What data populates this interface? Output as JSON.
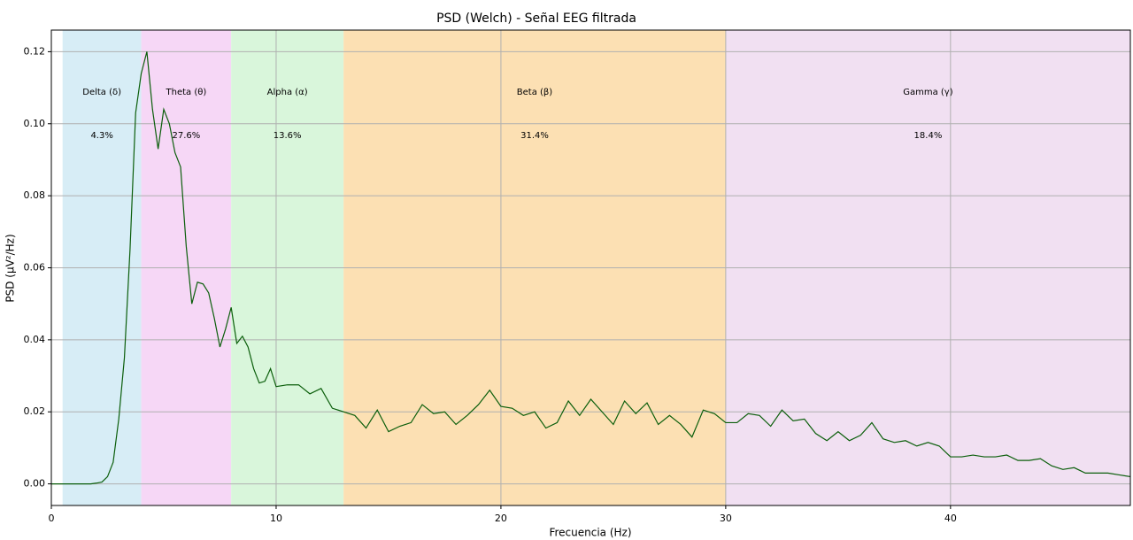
{
  "chart_data": {
    "type": "line",
    "title": "PSD (Welch) - Señal EEG filtrada",
    "xlabel": "Frecuencia (Hz)",
    "ylabel": "PSD (µV²/Hz)",
    "xlim": [
      0,
      48
    ],
    "ylim": [
      -0.006,
      0.126
    ],
    "xticks": [
      0,
      10,
      20,
      30,
      40
    ],
    "yticks": [
      {
        "value": 0,
        "label": "0.00"
      },
      {
        "value": 0.02,
        "label": "0.02"
      },
      {
        "value": 0.04,
        "label": "0.04"
      },
      {
        "value": 0.06,
        "label": "0.06"
      },
      {
        "value": 0.08,
        "label": "0.08"
      },
      {
        "value": 0.1,
        "label": "0.10"
      },
      {
        "value": 0.12,
        "label": "0.12"
      }
    ],
    "grid": true,
    "bands": {
      "names": [
        "Delta (δ)",
        "Theta (θ)",
        "Alpha (α)",
        "Beta (β)",
        "Gamma (γ)"
      ],
      "ranges": [
        [
          0.5,
          4
        ],
        [
          4,
          8
        ],
        [
          8,
          13
        ],
        [
          13,
          30
        ],
        [
          30,
          48
        ]
      ],
      "shares": [
        4.3,
        27.6,
        13.6,
        31.4,
        18.4
      ],
      "share_labels": [
        "4.3%",
        "27.6%",
        "13.6%",
        "31.4%",
        "18.4%"
      ],
      "colors": [
        "#d7edf6",
        "#f6d7f6",
        "#d9f6db",
        "#fce0b3",
        "#f1e0f2"
      ]
    },
    "series": [
      {
        "name": "PSD",
        "color": "#0b5e0b",
        "x": [
          0,
          0.25,
          0.5,
          0.75,
          1,
          1.25,
          1.5,
          1.75,
          2,
          2.25,
          2.5,
          2.75,
          3,
          3.25,
          3.5,
          3.75,
          4,
          4.25,
          4.5,
          4.75,
          5,
          5.25,
          5.5,
          5.75,
          6,
          6.25,
          6.5,
          6.75,
          7,
          7.25,
          7.5,
          7.75,
          8,
          8.25,
          8.5,
          8.75,
          9,
          9.25,
          9.5,
          9.75,
          10,
          10.5,
          11,
          11.5,
          12,
          12.5,
          13,
          13.5,
          14,
          14.5,
          15,
          15.5,
          16,
          16.5,
          17,
          17.5,
          18,
          18.5,
          19,
          19.5,
          20,
          20.5,
          21,
          21.5,
          22,
          22.5,
          23,
          23.5,
          24,
          24.5,
          25,
          25.5,
          26,
          26.5,
          27,
          27.5,
          28,
          28.5,
          29,
          29.5,
          30,
          30.5,
          31,
          31.5,
          32,
          32.5,
          33,
          33.5,
          34,
          34.5,
          35,
          35.5,
          36,
          36.5,
          37,
          37.5,
          38,
          38.5,
          39,
          39.5,
          40,
          40.5,
          41,
          41.5,
          42,
          42.5,
          43,
          43.5,
          44,
          44.5,
          45,
          45.5,
          46,
          46.5,
          47,
          47.5,
          48
        ],
        "values": [
          0,
          0,
          0,
          0,
          0,
          0,
          0,
          0,
          0.0002,
          0.0005,
          0.002,
          0.006,
          0.018,
          0.035,
          0.065,
          0.103,
          0.114,
          0.12,
          0.104,
          0.093,
          0.104,
          0.1,
          0.092,
          0.088,
          0.066,
          0.05,
          0.056,
          0.0555,
          0.053,
          0.046,
          0.038,
          0.043,
          0.049,
          0.039,
          0.041,
          0.038,
          0.032,
          0.028,
          0.0285,
          0.032,
          0.027,
          0.0275,
          0.0275,
          0.025,
          0.0265,
          0.021,
          0.02,
          0.019,
          0.0155,
          0.0205,
          0.0145,
          0.016,
          0.017,
          0.022,
          0.0195,
          0.02,
          0.0165,
          0.019,
          0.022,
          0.026,
          0.0215,
          0.021,
          0.019,
          0.02,
          0.0155,
          0.017,
          0.023,
          0.019,
          0.0235,
          0.02,
          0.0165,
          0.023,
          0.0195,
          0.0225,
          0.0165,
          0.019,
          0.0165,
          0.013,
          0.0205,
          0.0195,
          0.017,
          0.017,
          0.0195,
          0.019,
          0.016,
          0.0205,
          0.0175,
          0.018,
          0.014,
          0.012,
          0.0145,
          0.012,
          0.0135,
          0.017,
          0.0125,
          0.0115,
          0.012,
          0.0105,
          0.0115,
          0.0105,
          0.0075,
          0.0075,
          0.008,
          0.0075,
          0.0075,
          0.008,
          0.0065,
          0.0065,
          0.007,
          0.005,
          0.004,
          0.0045,
          0.003,
          0.003,
          0.003,
          0.0025,
          0.002
        ]
      }
    ]
  }
}
